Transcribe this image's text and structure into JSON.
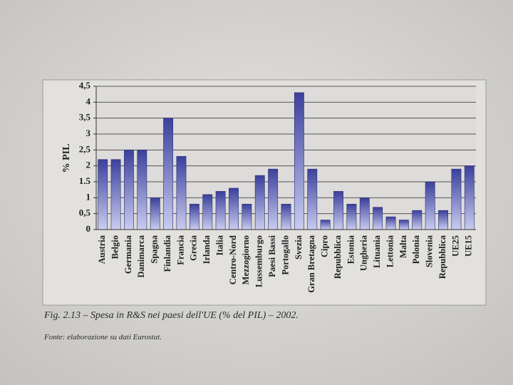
{
  "chart_data": {
    "type": "bar",
    "title": "Fig. 2.13 – Spesa in R&S nei paesi dell'UE (% del PIL) – 2002.",
    "source": "Fonte: elaborazione su dati Eurostat.",
    "y_label": "% PIL",
    "categories": [
      "Austria",
      "Belgio",
      "Germania",
      "Danimarca",
      "Spagna",
      "Finlandia",
      "Francia",
      "Grecia",
      "Irlanda",
      "Italia",
      "Centro-Nord",
      "Mezzogiorno",
      "Lussemburgo",
      "Paesi Bassi",
      "Portogallo",
      "Svezia",
      "Gran Bretagna",
      "Cipro",
      "Repubblica",
      "Estonia",
      "Ungheria",
      "Lituania",
      "Lettonia",
      "Malta",
      "Polonia",
      "Slovenia",
      "Repubblica",
      "UE25",
      "UE15"
    ],
    "values": [
      2.2,
      2.2,
      2.5,
      2.5,
      1.0,
      3.5,
      2.3,
      0.8,
      1.1,
      1.2,
      1.3,
      0.8,
      1.7,
      1.9,
      0.8,
      4.3,
      1.9,
      0.3,
      1.2,
      0.8,
      1.0,
      0.7,
      0.4,
      0.3,
      0.6,
      1.5,
      0.6,
      1.9,
      2.0
    ],
    "color": "#3b409c",
    "ylim": [
      0,
      4.5
    ],
    "yticks": [
      0,
      {
        "value": 0.5,
        "label": "0,5"
      },
      1,
      {
        "value": 1.5,
        "label": "1.5"
      },
      2,
      {
        "value": 2.5,
        "label": "2,5"
      },
      3,
      {
        "value": 3.5,
        "label": "3,5"
      },
      4,
      {
        "value": 4.5,
        "label": "4,5"
      }
    ],
    "grid": true
  }
}
